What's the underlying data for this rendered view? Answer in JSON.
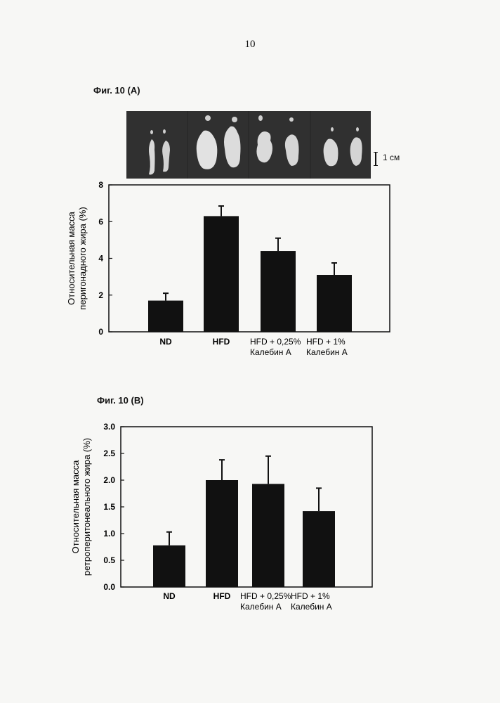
{
  "page_number": "10",
  "figure_a": {
    "caption": "Фиг. 10 (A)",
    "scale_label": "1 см"
  },
  "figure_b": {
    "caption": "Фиг. 10 (B)"
  },
  "chart_data": [
    {
      "type": "bar",
      "title": "",
      "categories": [
        [
          "ND"
        ],
        [
          "HFD"
        ],
        [
          "HFD + 0,25%",
          "Калебин А"
        ],
        [
          "HFD + 1%",
          "Калебин А"
        ]
      ],
      "category_bold": [
        true,
        true,
        false,
        false
      ],
      "values": [
        1.7,
        6.3,
        4.4,
        3.1
      ],
      "errors": [
        0.4,
        0.55,
        0.7,
        0.65
      ],
      "ylabel": [
        "Относительная масса",
        "перигонадного жира (%)"
      ],
      "xlabel": "",
      "ylim": [
        0,
        8
      ],
      "yticks": [
        "0",
        "2",
        "4",
        "6",
        "8"
      ],
      "bar_color": "#111111",
      "grid": false
    },
    {
      "type": "bar",
      "title": "",
      "categories": [
        [
          "ND"
        ],
        [
          "HFD"
        ],
        [
          "HFD + 0,25%",
          "Калебин А"
        ],
        [
          "HFD + 1%",
          "Калебин А"
        ]
      ],
      "category_bold": [
        true,
        true,
        false,
        false
      ],
      "values": [
        0.78,
        2.0,
        1.93,
        1.42
      ],
      "errors": [
        0.25,
        0.38,
        0.52,
        0.43
      ],
      "ylabel": [
        "Относительная масса",
        "ретроперитонеального жира (%)"
      ],
      "xlabel": "",
      "ylim": [
        0,
        3.0
      ],
      "yticks": [
        "0.0",
        "0.5",
        "1.0",
        "1.5",
        "2.0",
        "2.5",
        "3.0"
      ],
      "bar_color": "#111111",
      "grid": false
    }
  ]
}
